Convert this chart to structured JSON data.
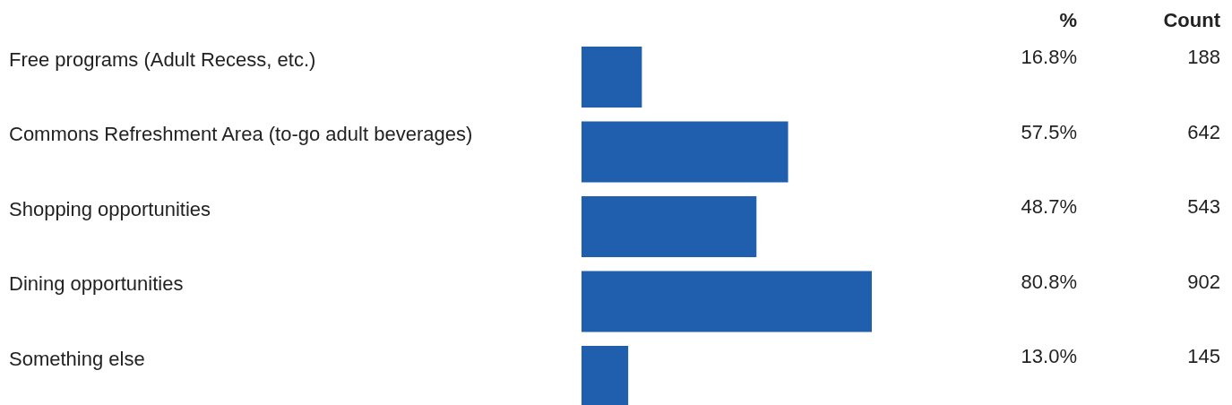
{
  "chart_data": {
    "type": "bar",
    "orientation": "horizontal",
    "categories": [
      "Free programs (Adult Recess, etc.)",
      "Commons Refreshment Area (to-go adult beverages)",
      "Shopping opportunities",
      "Dining opportunities",
      "Something else"
    ],
    "values": [
      16.8,
      57.5,
      48.7,
      80.8,
      13.0
    ],
    "value_labels": [
      "16.8%",
      "57.5%",
      "48.7%",
      "80.8%",
      "13.0%"
    ],
    "color": "#1f5fad",
    "annotations": [
      "%",
      "Count",
      "188",
      "642",
      "543",
      "902",
      "145"
    ],
    "grid": false,
    "legend": false
  }
}
